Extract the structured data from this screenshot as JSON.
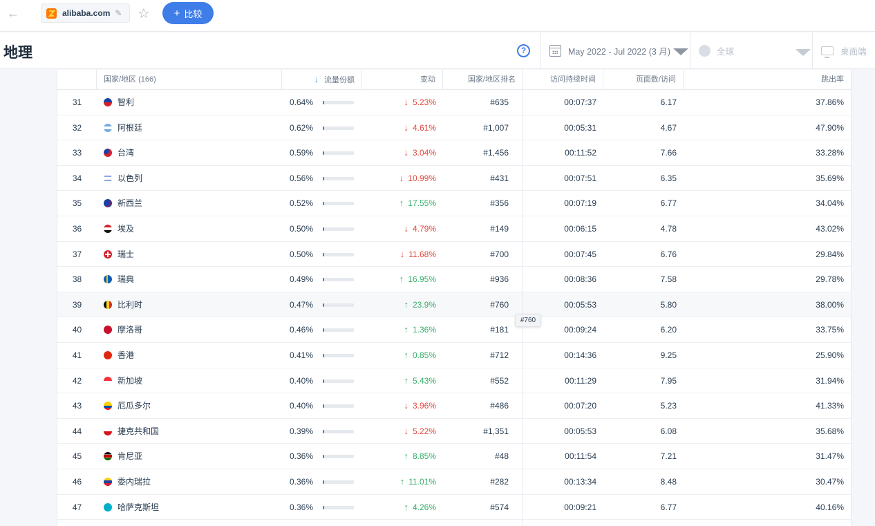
{
  "topbar": {
    "site": "alibaba.com",
    "compare_label": "比较"
  },
  "header": {
    "title": "地理",
    "date_range": "May 2022 - Jul 2022 (3 月)",
    "region": "全球",
    "device": "桌面端"
  },
  "table": {
    "columns": {
      "country": "国家/地区 (166)",
      "share": "流量份额",
      "change": "变动",
      "country_rank": "国家/地区排名",
      "duration": "访问持续时间",
      "pages": "页面数/访问",
      "bounce": "跳出率"
    },
    "tooltip": "#760",
    "rows": [
      {
        "rank": "31",
        "country": "智利",
        "flag": "chile",
        "share": "0.64%",
        "share_pct": 0.64,
        "dir": "down",
        "change": "5.23%",
        "crank": "#635",
        "duration": "00:07:37",
        "pages": "6.17",
        "bounce": "37.86%"
      },
      {
        "rank": "32",
        "country": "阿根廷",
        "flag": "argentina",
        "share": "0.62%",
        "share_pct": 0.62,
        "dir": "down",
        "change": "4.61%",
        "crank": "#1,007",
        "duration": "00:05:31",
        "pages": "4.67",
        "bounce": "47.90%"
      },
      {
        "rank": "33",
        "country": "台湾",
        "flag": "taiwan",
        "share": "0.59%",
        "share_pct": 0.59,
        "dir": "down",
        "change": "3.04%",
        "crank": "#1,456",
        "duration": "00:11:52",
        "pages": "7.66",
        "bounce": "33.28%"
      },
      {
        "rank": "34",
        "country": "以色列",
        "flag": "israel",
        "share": "0.56%",
        "share_pct": 0.56,
        "dir": "down",
        "change": "10.99%",
        "crank": "#431",
        "duration": "00:07:51",
        "pages": "6.35",
        "bounce": "35.69%"
      },
      {
        "rank": "35",
        "country": "新西兰",
        "flag": "new-zealand",
        "share": "0.52%",
        "share_pct": 0.52,
        "dir": "up",
        "change": "17.55%",
        "crank": "#356",
        "duration": "00:07:19",
        "pages": "6.77",
        "bounce": "34.04%"
      },
      {
        "rank": "36",
        "country": "埃及",
        "flag": "egypt",
        "share": "0.50%",
        "share_pct": 0.5,
        "dir": "down",
        "change": "4.79%",
        "crank": "#149",
        "duration": "00:06:15",
        "pages": "4.78",
        "bounce": "43.02%"
      },
      {
        "rank": "37",
        "country": "瑞士",
        "flag": "switzerland",
        "share": "0.50%",
        "share_pct": 0.5,
        "dir": "down",
        "change": "11.68%",
        "crank": "#700",
        "duration": "00:07:45",
        "pages": "6.76",
        "bounce": "29.84%"
      },
      {
        "rank": "38",
        "country": "瑞典",
        "flag": "sweden",
        "share": "0.49%",
        "share_pct": 0.49,
        "dir": "up",
        "change": "16.95%",
        "crank": "#936",
        "duration": "00:08:36",
        "pages": "7.58",
        "bounce": "29.78%"
      },
      {
        "rank": "39",
        "country": "比利时",
        "flag": "belgium",
        "share": "0.47%",
        "share_pct": 0.47,
        "dir": "up",
        "change": "23.9%",
        "crank": "#760",
        "duration": "00:05:53",
        "pages": "5.80",
        "bounce": "38.00%"
      },
      {
        "rank": "40",
        "country": "摩洛哥",
        "flag": "morocco",
        "share": "0.46%",
        "share_pct": 0.46,
        "dir": "up",
        "change": "1.36%",
        "crank": "#181",
        "duration": "00:09:24",
        "pages": "6.20",
        "bounce": "33.75%"
      },
      {
        "rank": "41",
        "country": "香港",
        "flag": "hong-kong",
        "share": "0.41%",
        "share_pct": 0.41,
        "dir": "up",
        "change": "0.85%",
        "crank": "#712",
        "duration": "00:14:36",
        "pages": "9.25",
        "bounce": "25.90%"
      },
      {
        "rank": "42",
        "country": "新加坡",
        "flag": "singapore",
        "share": "0.40%",
        "share_pct": 0.4,
        "dir": "up",
        "change": "5.43%",
        "crank": "#552",
        "duration": "00:11:29",
        "pages": "7.95",
        "bounce": "31.94%"
      },
      {
        "rank": "43",
        "country": "厄瓜多尔",
        "flag": "ecuador",
        "share": "0.40%",
        "share_pct": 0.4,
        "dir": "down",
        "change": "3.96%",
        "crank": "#486",
        "duration": "00:07:20",
        "pages": "5.23",
        "bounce": "41.33%"
      },
      {
        "rank": "44",
        "country": "捷克共和国",
        "flag": "czech",
        "share": "0.39%",
        "share_pct": 0.39,
        "dir": "down",
        "change": "5.22%",
        "crank": "#1,351",
        "duration": "00:05:53",
        "pages": "6.08",
        "bounce": "35.68%"
      },
      {
        "rank": "45",
        "country": "肯尼亚",
        "flag": "kenya",
        "share": "0.36%",
        "share_pct": 0.36,
        "dir": "up",
        "change": "8.85%",
        "crank": "#48",
        "duration": "00:11:54",
        "pages": "7.21",
        "bounce": "31.47%"
      },
      {
        "rank": "46",
        "country": "委内瑞拉",
        "flag": "venezuela",
        "share": "0.36%",
        "share_pct": 0.36,
        "dir": "up",
        "change": "11.01%",
        "crank": "#282",
        "duration": "00:13:34",
        "pages": "8.48",
        "bounce": "30.47%"
      },
      {
        "rank": "47",
        "country": "哈萨克斯坦",
        "flag": "kazakhstan",
        "share": "0.36%",
        "share_pct": 0.36,
        "dir": "up",
        "change": "4.26%",
        "crank": "#574",
        "duration": "00:09:21",
        "pages": "6.77",
        "bounce": "40.16%"
      }
    ]
  }
}
